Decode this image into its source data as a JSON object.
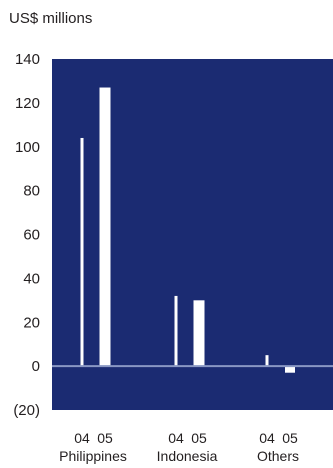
{
  "chart_data": {
    "type": "bar",
    "ylabel": "US$ millions",
    "ylim": [
      -20,
      140
    ],
    "yticks": [
      "140",
      "120",
      "100",
      "80",
      "60",
      "40",
      "20",
      "0",
      "(20)"
    ],
    "ytick_values": [
      140,
      120,
      100,
      80,
      60,
      40,
      20,
      0,
      -20
    ],
    "categories": [
      "Philippines",
      "Indonesia",
      "Others"
    ],
    "series": [
      {
        "name": "04",
        "values": [
          104,
          32,
          5
        ]
      },
      {
        "name": "05",
        "values": [
          127,
          30,
          -3
        ]
      }
    ],
    "grid": false,
    "colors": {
      "plot_bg": "#1b2b72",
      "bar": "#ffffff",
      "zero_line": "#8a98c4",
      "text": "#231f20"
    }
  }
}
